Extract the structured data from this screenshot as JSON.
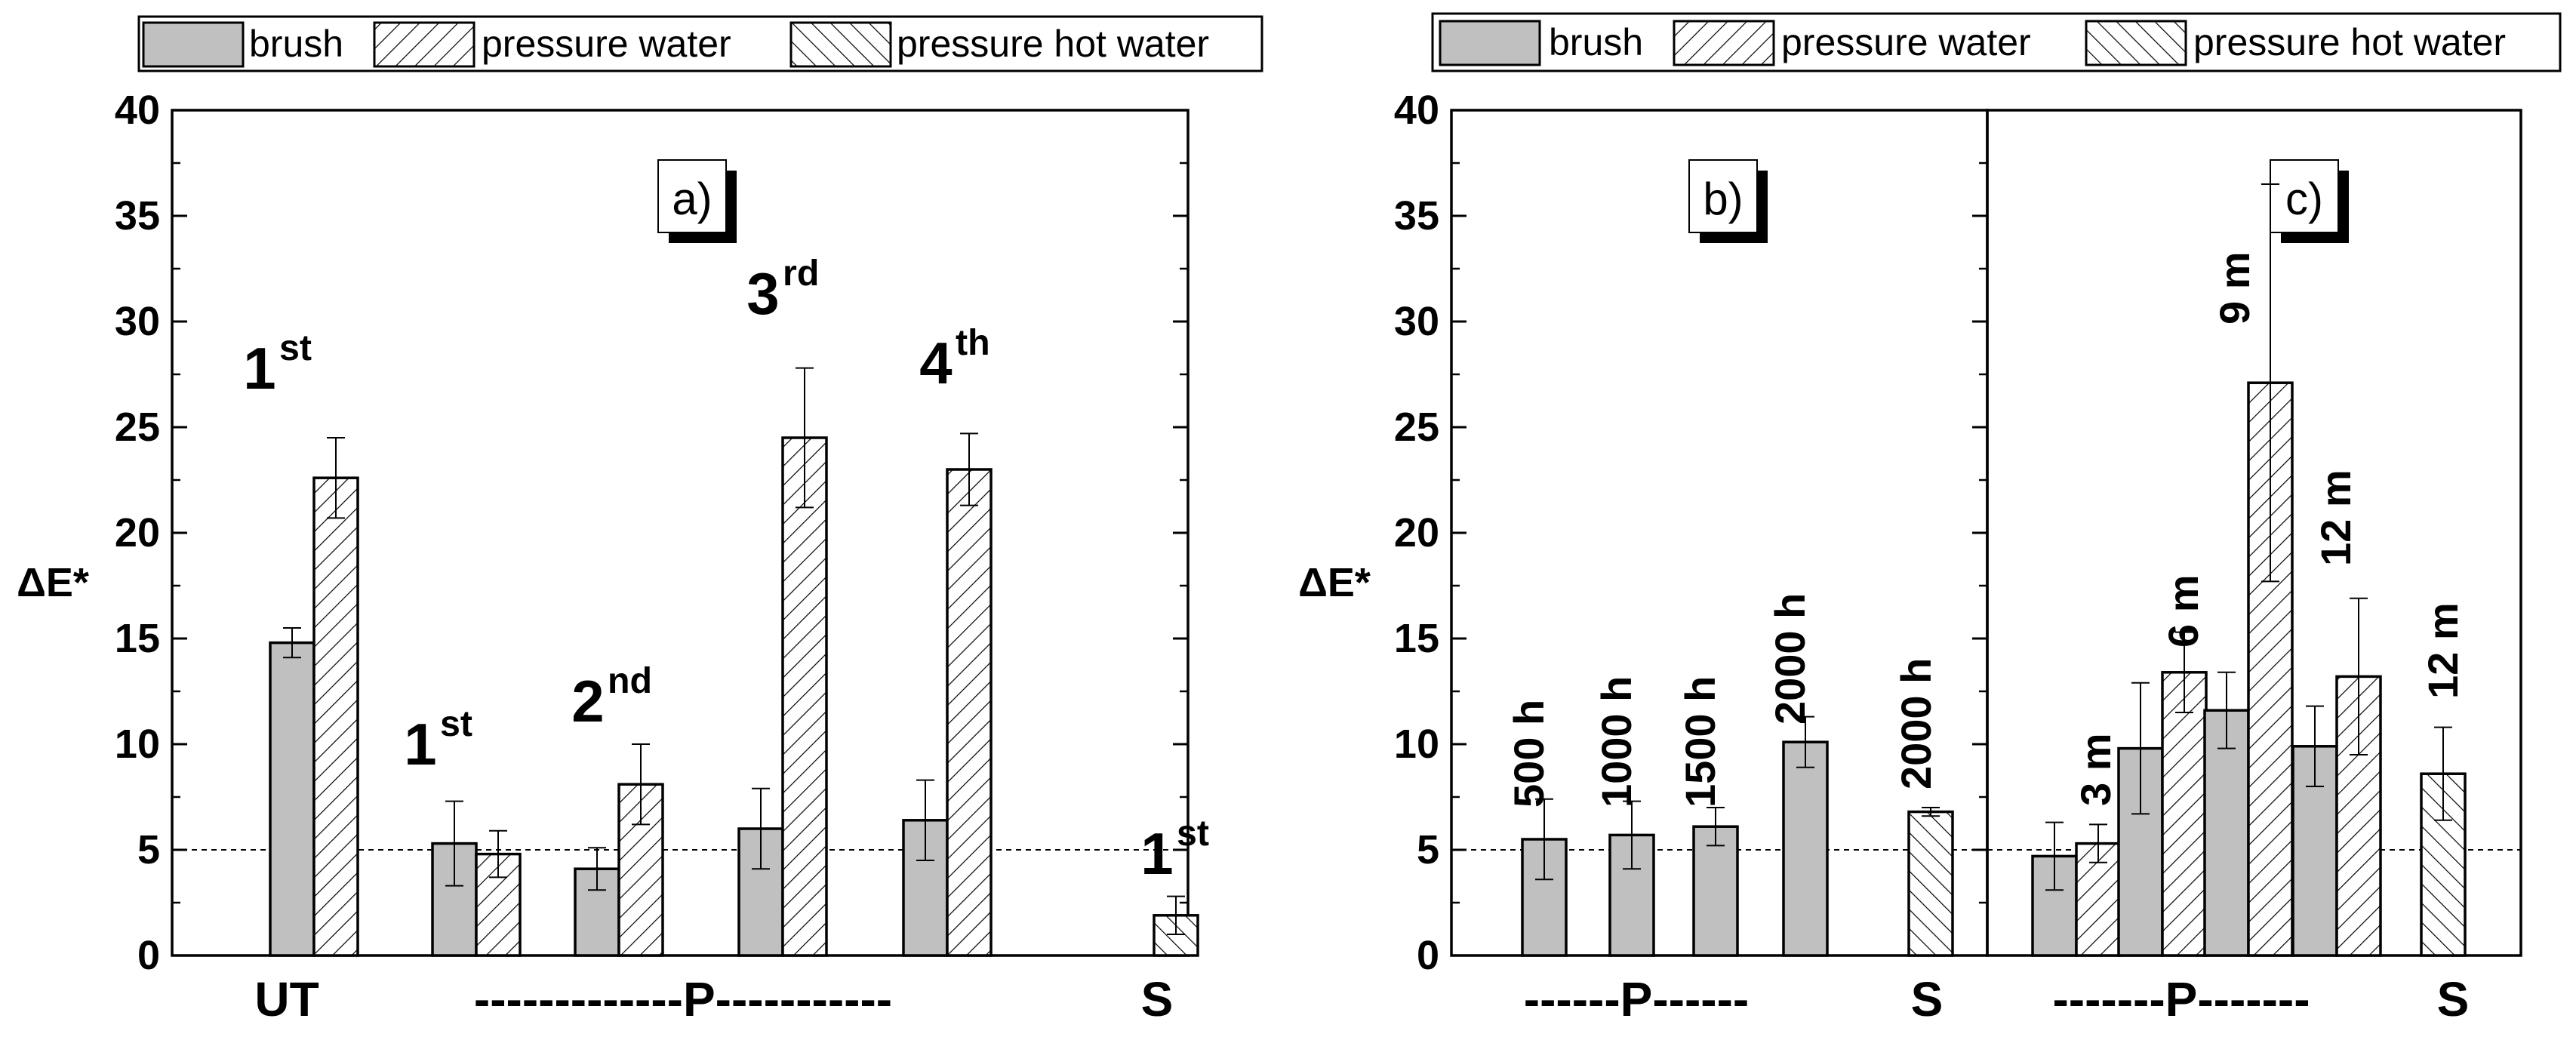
{
  "legend": {
    "items": [
      {
        "label": "brush",
        "pattern": "solid"
      },
      {
        "label": "pressure water",
        "pattern": "hatch-forward"
      },
      {
        "label": "pressure hot water",
        "pattern": "hatch-back"
      }
    ]
  },
  "colors": {
    "bar_fill": "#c0c0c0",
    "line": "#000000",
    "background": "#ffffff"
  },
  "chart_data": [
    {
      "type": "bar",
      "panel_label": "a)",
      "ylabel": "ΔE*",
      "ylim": [
        0,
        40
      ],
      "yticks": [
        0,
        5,
        10,
        15,
        20,
        25,
        30,
        35,
        40
      ],
      "reference_line": 5,
      "groups": [
        {
          "annotation": "1",
          "superscript": "st",
          "bars": [
            {
              "series": "brush",
              "value": 14.8,
              "error": 0.7
            },
            {
              "series": "pressure water",
              "value": 22.6,
              "error": 1.9
            }
          ]
        },
        {
          "annotation": "1",
          "superscript": "st",
          "bars": [
            {
              "series": "brush",
              "value": 5.3,
              "error": 2.0
            },
            {
              "series": "pressure water",
              "value": 4.8,
              "error": 1.1
            }
          ]
        },
        {
          "annotation": "2",
          "superscript": "nd",
          "bars": [
            {
              "series": "brush",
              "value": 4.1,
              "error": 1.0
            },
            {
              "series": "pressure water",
              "value": 8.1,
              "error": 1.9
            }
          ]
        },
        {
          "annotation": "3",
          "superscript": "rd",
          "bars": [
            {
              "series": "brush",
              "value": 6.0,
              "error": 1.9
            },
            {
              "series": "pressure water",
              "value": 24.5,
              "error": 3.3
            }
          ]
        },
        {
          "annotation": "4",
          "superscript": "th",
          "bars": [
            {
              "series": "brush",
              "value": 6.4,
              "error": 1.9
            },
            {
              "series": "pressure water",
              "value": 23.0,
              "error": 1.7
            }
          ]
        },
        {
          "annotation": "1",
          "superscript": "st",
          "bars": [
            {
              "series": "pressure hot water",
              "value": 1.9,
              "error": 0.9
            }
          ]
        }
      ],
      "xlabels": [
        "UT",
        "-------------P-----------",
        "S"
      ]
    },
    {
      "type": "bar",
      "panel_label": "b)",
      "ylabel": "ΔE*",
      "ylim": [
        0,
        40
      ],
      "yticks": [
        0,
        5,
        10,
        15,
        20,
        25,
        30,
        35,
        40
      ],
      "reference_line": 5,
      "groups": [
        {
          "annotation": "500 h",
          "bars": [
            {
              "series": "brush",
              "value": 5.5,
              "error": 1.9
            }
          ]
        },
        {
          "annotation": "1000 h",
          "bars": [
            {
              "series": "brush",
              "value": 5.7,
              "error": 1.6
            }
          ]
        },
        {
          "annotation": "1500 h",
          "bars": [
            {
              "series": "brush",
              "value": 6.1,
              "error": 0.9
            }
          ]
        },
        {
          "annotation": "2000 h",
          "bars": [
            {
              "series": "brush",
              "value": 10.1,
              "error": 1.2
            }
          ]
        },
        {
          "annotation": "2000 h",
          "bars": [
            {
              "series": "pressure hot water",
              "value": 6.8,
              "error": 0.2
            }
          ]
        }
      ],
      "xlabels": [
        "------P------",
        "S"
      ]
    },
    {
      "type": "bar",
      "panel_label": "c)",
      "ylim": [
        0,
        40
      ],
      "reference_line": 5,
      "groups": [
        {
          "annotation": "3 m",
          "bars": [
            {
              "series": "brush",
              "value": 4.7,
              "error": 1.6
            },
            {
              "series": "pressure water",
              "value": 5.3,
              "error": 0.9
            }
          ]
        },
        {
          "annotation": "6 m",
          "bars": [
            {
              "series": "brush",
              "value": 9.8,
              "error": 3.1
            },
            {
              "series": "pressure water",
              "value": 13.4,
              "error": 1.9
            }
          ]
        },
        {
          "annotation": "9 m",
          "bars": [
            {
              "series": "brush",
              "value": 11.6,
              "error": 1.8
            },
            {
              "series": "pressure water",
              "value": 27.1,
              "error": 9.4
            }
          ]
        },
        {
          "annotation": "12 m",
          "bars": [
            {
              "series": "brush",
              "value": 9.9,
              "error": 1.9
            },
            {
              "series": "pressure water",
              "value": 13.2,
              "error": 3.7
            }
          ]
        },
        {
          "annotation": "12 m",
          "bars": [
            {
              "series": "pressure hot water",
              "value": 8.6,
              "error": 2.2
            }
          ]
        }
      ],
      "xlabels": [
        "-------P-------",
        "S"
      ]
    }
  ]
}
